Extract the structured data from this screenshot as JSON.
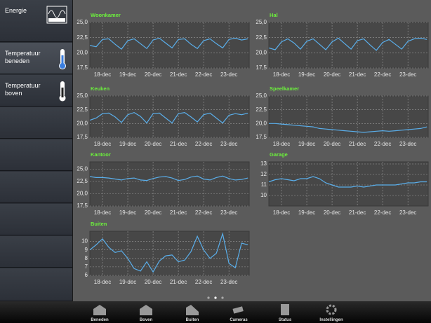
{
  "sidebar": {
    "items": [
      "Energie",
      "Temperatuur beneden",
      "Temperatuur boven"
    ]
  },
  "tabs": [
    "Beneden",
    "Boven",
    "Buiten",
    "Cameras",
    "Status",
    "Instellingen"
  ],
  "chart_data": [
    {
      "type": "line",
      "title": "Woonkamer",
      "color": "#5aaeea",
      "grid": true,
      "x": [
        -0.5,
        -0.25,
        0,
        0.25,
        0.5,
        0.75,
        1,
        1.25,
        1.5,
        1.75,
        2,
        2.25,
        2.5,
        2.75,
        3,
        3.25,
        3.5,
        3.75,
        4,
        4.25,
        4.5,
        4.75,
        5,
        5.25,
        5.5,
        5.75
      ],
      "values": [
        21.2,
        21.0,
        22.2,
        22.3,
        21.4,
        20.6,
        22.0,
        22.3,
        21.5,
        20.7,
        22.1,
        22.4,
        21.6,
        20.8,
        22.2,
        22.3,
        21.4,
        20.7,
        22.0,
        22.3,
        21.5,
        20.8,
        22.2,
        22.4,
        22.1,
        22.3
      ],
      "xlim": [
        -0.5,
        5.8
      ],
      "xticks": [
        {
          "value": 0,
          "label": "18-dec"
        },
        {
          "value": 1,
          "label": "19-dec"
        },
        {
          "value": 2,
          "label": "20-dec"
        },
        {
          "value": 3,
          "label": "21-dec"
        },
        {
          "value": 4,
          "label": "22-dec"
        },
        {
          "value": 5,
          "label": "23-dec"
        }
      ],
      "ylim": [
        17.5,
        25
      ],
      "yticks": [
        {
          "value": 17.5,
          "label": "17,5"
        },
        {
          "value": 20,
          "label": "20,0"
        },
        {
          "value": 22.5,
          "label": "22,5"
        },
        {
          "value": 25,
          "label": "25,0"
        }
      ]
    },
    {
      "type": "line",
      "title": "Hal",
      "color": "#5aaeea",
      "grid": true,
      "x": [
        -0.5,
        -0.25,
        0,
        0.25,
        0.5,
        0.75,
        1,
        1.25,
        1.5,
        1.75,
        2,
        2.25,
        2.5,
        2.75,
        3,
        3.25,
        3.5,
        3.75,
        4,
        4.25,
        4.5,
        4.75,
        5,
        5.25,
        5.5,
        5.75
      ],
      "values": [
        20.8,
        20.5,
        21.8,
        22.3,
        21.6,
        20.6,
        21.9,
        22.3,
        21.4,
        20.5,
        21.8,
        22.4,
        21.5,
        20.6,
        22.0,
        22.3,
        21.3,
        20.4,
        21.7,
        22.2,
        21.4,
        20.6,
        21.9,
        22.3,
        22.4,
        22.2
      ],
      "xlim": [
        -0.5,
        5.8
      ],
      "xticks": [
        {
          "value": 0,
          "label": "18-dec"
        },
        {
          "value": 1,
          "label": "19-dec"
        },
        {
          "value": 2,
          "label": "20-dec"
        },
        {
          "value": 3,
          "label": "21-dec"
        },
        {
          "value": 4,
          "label": "22-dec"
        },
        {
          "value": 5,
          "label": "23-dec"
        }
      ],
      "ylim": [
        17.5,
        25
      ],
      "yticks": [
        {
          "value": 17.5,
          "label": "17,5"
        },
        {
          "value": 20,
          "label": "20,0"
        },
        {
          "value": 22.5,
          "label": "22,5"
        },
        {
          "value": 25,
          "label": "25,0"
        }
      ]
    },
    {
      "type": "line",
      "title": "Keuken",
      "color": "#5aaeea",
      "grid": true,
      "x": [
        -0.5,
        -0.25,
        0,
        0.25,
        0.5,
        0.75,
        1,
        1.25,
        1.5,
        1.75,
        2,
        2.25,
        2.5,
        2.75,
        3,
        3.25,
        3.5,
        3.75,
        4,
        4.25,
        4.5,
        4.75,
        5,
        5.25,
        5.5,
        5.75
      ],
      "values": [
        20.6,
        21.0,
        21.8,
        21.9,
        21.2,
        20.2,
        21.6,
        22.0,
        21.3,
        20.1,
        21.8,
        21.9,
        21.0,
        20.1,
        21.8,
        22.0,
        21.2,
        20.3,
        21.6,
        21.9,
        21.0,
        20.1,
        21.5,
        21.8,
        21.6,
        21.9
      ],
      "xlim": [
        -0.5,
        5.8
      ],
      "xticks": [
        {
          "value": 0,
          "label": "18-dec"
        },
        {
          "value": 1,
          "label": "19-dec"
        },
        {
          "value": 2,
          "label": "20-dec"
        },
        {
          "value": 3,
          "label": "21-dec"
        },
        {
          "value": 4,
          "label": "22-dec"
        },
        {
          "value": 5,
          "label": "23-dec"
        }
      ],
      "ylim": [
        17.5,
        25
      ],
      "yticks": [
        {
          "value": 17.5,
          "label": "17,5"
        },
        {
          "value": 20,
          "label": "20,0"
        },
        {
          "value": 22.5,
          "label": "22,5"
        },
        {
          "value": 25,
          "label": "25,0"
        }
      ]
    },
    {
      "type": "line",
      "title": "Speelkamer",
      "color": "#5aaeea",
      "grid": true,
      "x": [
        -0.5,
        -0.25,
        0,
        0.25,
        0.5,
        0.75,
        1,
        1.25,
        1.5,
        1.75,
        2,
        2.25,
        2.5,
        2.75,
        3,
        3.25,
        3.5,
        3.75,
        4,
        4.25,
        4.5,
        4.75,
        5,
        5.25,
        5.5,
        5.75
      ],
      "values": [
        20.0,
        20.0,
        19.9,
        19.8,
        19.7,
        19.6,
        19.5,
        19.4,
        19.1,
        19.0,
        18.9,
        18.8,
        18.7,
        18.6,
        18.5,
        18.4,
        18.5,
        18.6,
        18.7,
        18.6,
        18.7,
        18.8,
        18.9,
        19.0,
        19.1,
        19.4
      ],
      "xlim": [
        -0.5,
        5.8
      ],
      "xticks": [
        {
          "value": 0,
          "label": "18-dec"
        },
        {
          "value": 1,
          "label": "19-dec"
        },
        {
          "value": 2,
          "label": "20-dec"
        },
        {
          "value": 3,
          "label": "21-dec"
        },
        {
          "value": 4,
          "label": "22-dec"
        },
        {
          "value": 5,
          "label": "23-dec"
        }
      ],
      "ylim": [
        17.5,
        25
      ],
      "yticks": [
        {
          "value": 17.5,
          "label": "17,5"
        },
        {
          "value": 20,
          "label": "20,0"
        },
        {
          "value": 22.5,
          "label": "22,5"
        },
        {
          "value": 25,
          "label": "25,0"
        }
      ]
    },
    {
      "type": "line",
      "title": "Kantoor",
      "color": "#5aaeea",
      "grid": true,
      "x": [
        -0.5,
        -0.25,
        0,
        0.25,
        0.5,
        0.75,
        1,
        1.25,
        1.5,
        1.75,
        2,
        2.25,
        2.5,
        2.75,
        3,
        3.25,
        3.5,
        3.75,
        4,
        4.25,
        4.5,
        4.75,
        5,
        5.25,
        5.5,
        5.75
      ],
      "values": [
        23.5,
        23.3,
        23.3,
        23.2,
        23.0,
        22.8,
        23.1,
        23.2,
        22.8,
        22.7,
        23.1,
        23.4,
        23.5,
        23.2,
        22.7,
        22.9,
        23.4,
        23.6,
        23.0,
        22.8,
        23.3,
        23.6,
        23.1,
        22.8,
        22.9,
        23.2
      ],
      "xlim": [
        -0.5,
        5.8
      ],
      "xticks": [
        {
          "value": 0,
          "label": "18-dec"
        },
        {
          "value": 1,
          "label": "19-dec"
        },
        {
          "value": 2,
          "label": "20-dec"
        },
        {
          "value": 3,
          "label": "21-dec"
        },
        {
          "value": 4,
          "label": "22-dec"
        },
        {
          "value": 5,
          "label": "23-dec"
        }
      ],
      "ylim": [
        17.5,
        26.5
      ],
      "yticks": [
        {
          "value": 17.5,
          "label": "17,5"
        },
        {
          "value": 20,
          "label": "20,0"
        },
        {
          "value": 22.5,
          "label": "22,5"
        },
        {
          "value": 25,
          "label": "25,0"
        }
      ]
    },
    {
      "type": "line",
      "title": "Garage",
      "color": "#5aaeea",
      "grid": true,
      "x": [
        -0.5,
        -0.25,
        0,
        0.25,
        0.5,
        0.75,
        1,
        1.25,
        1.5,
        1.75,
        2,
        2.25,
        2.5,
        2.75,
        3,
        3.25,
        3.5,
        3.75,
        4,
        4.25,
        4.5,
        4.75,
        5,
        5.25,
        5.5,
        5.75
      ],
      "values": [
        11.3,
        11.5,
        11.6,
        11.5,
        11.4,
        11.6,
        11.6,
        11.8,
        11.6,
        11.2,
        11.0,
        10.8,
        10.8,
        10.8,
        10.9,
        10.8,
        10.9,
        11.0,
        11.0,
        11.0,
        11.0,
        11.1,
        11.2,
        11.2,
        11.3,
        11.3
      ],
      "xlim": [
        -0.5,
        5.8
      ],
      "xticks": [
        {
          "value": 0,
          "label": "18-dec"
        },
        {
          "value": 1,
          "label": "19-dec"
        },
        {
          "value": 2,
          "label": "20-dec"
        },
        {
          "value": 3,
          "label": "21-dec"
        },
        {
          "value": 4,
          "label": "22-dec"
        },
        {
          "value": 5,
          "label": "23-dec"
        }
      ],
      "ylim": [
        9,
        13.2
      ],
      "yticks": [
        10,
        11,
        12,
        13
      ]
    },
    {
      "type": "line",
      "title": "Buiten",
      "color": "#5aaeea",
      "grid": true,
      "x": [
        -0.5,
        -0.25,
        0,
        0.25,
        0.5,
        0.75,
        1,
        1.25,
        1.5,
        1.75,
        2,
        2.25,
        2.5,
        2.75,
        3,
        3.25,
        3.5,
        3.75,
        4,
        4.25,
        4.5,
        4.75,
        5,
        5.25,
        5.5,
        5.75
      ],
      "values": [
        9.0,
        9.6,
        10.3,
        9.3,
        8.7,
        8.9,
        8.0,
        6.8,
        6.5,
        7.6,
        6.4,
        7.7,
        8.3,
        8.4,
        7.6,
        7.8,
        8.8,
        10.6,
        9.0,
        8.0,
        8.6,
        10.9,
        7.4,
        6.9,
        9.8,
        9.6
      ],
      "xlim": [
        -0.5,
        5.8
      ],
      "xticks": [
        {
          "value": 0,
          "label": "18-dec"
        },
        {
          "value": 1,
          "label": "19-dec"
        },
        {
          "value": 2,
          "label": "20-dec"
        },
        {
          "value": 3,
          "label": "21-dec"
        },
        {
          "value": 4,
          "label": "22-dec"
        },
        {
          "value": 5,
          "label": "23-dec"
        }
      ],
      "ylim": [
        6,
        11.2
      ],
      "yticks": [
        6,
        7,
        8,
        9,
        10
      ]
    }
  ]
}
